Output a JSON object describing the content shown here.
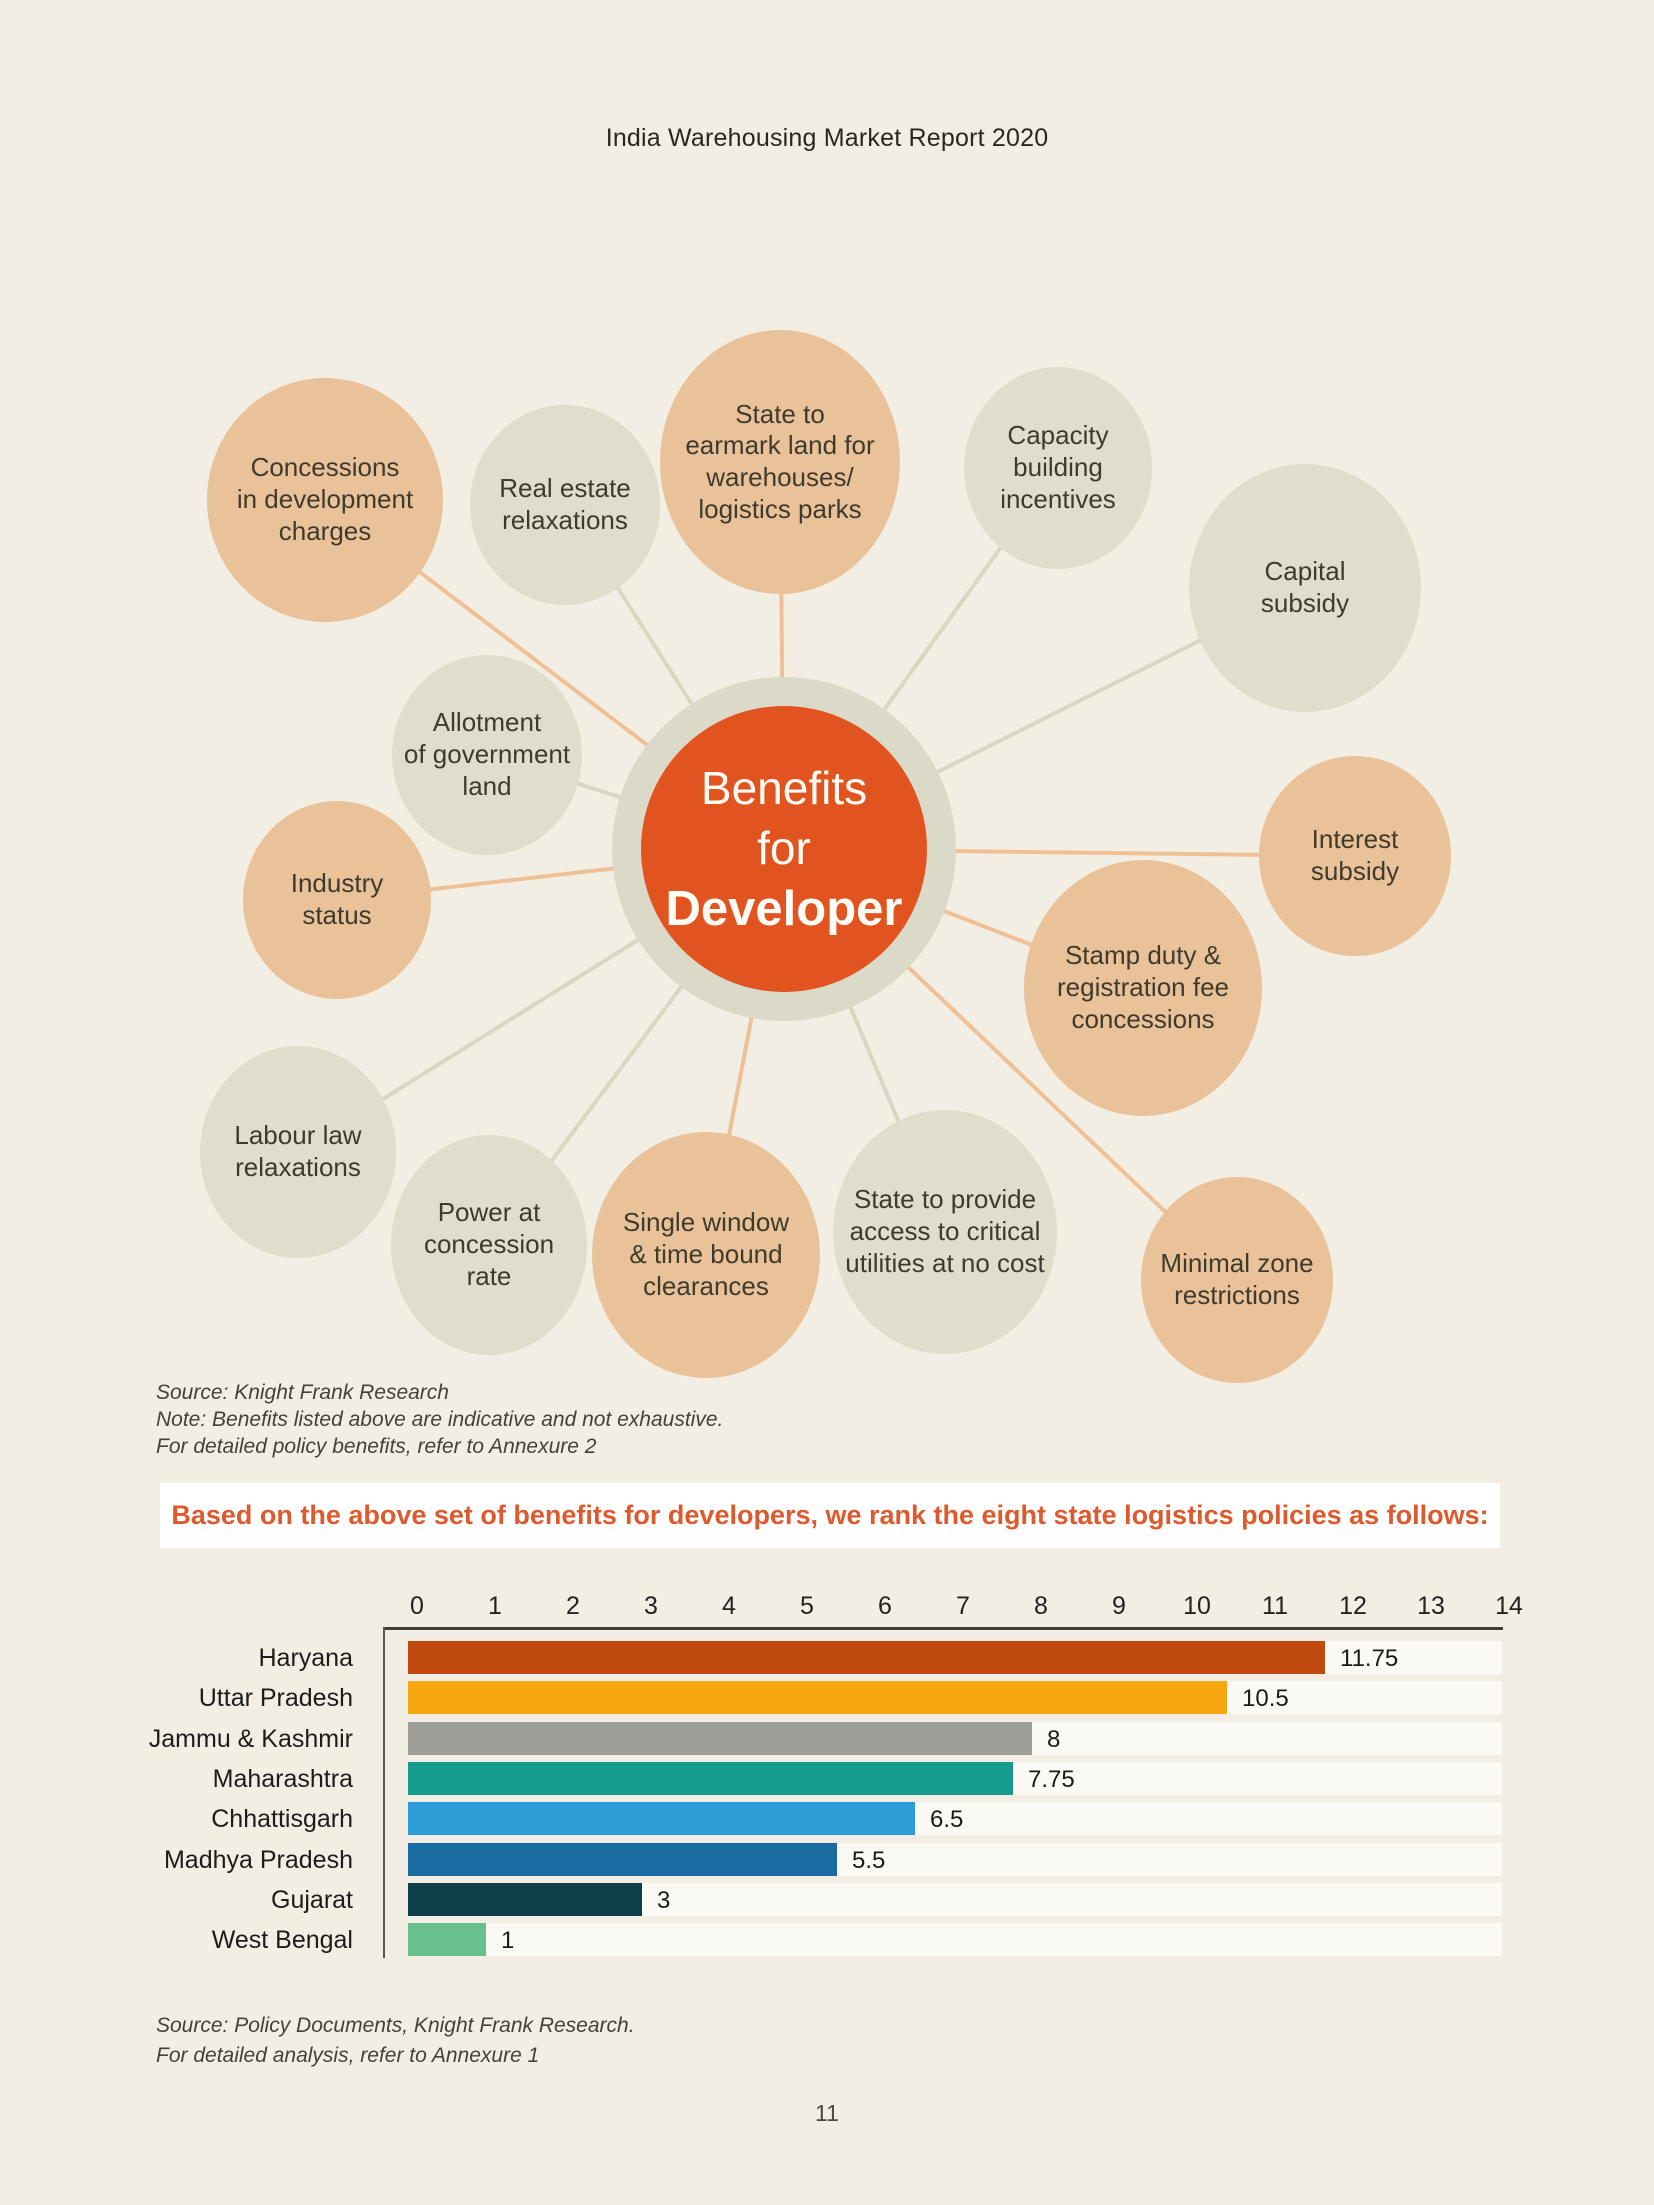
{
  "page": {
    "header": "India Warehousing Market Report 2020",
    "page_number": "11",
    "background_color": "#f2eee3"
  },
  "diagram": {
    "center": {
      "top_label": "Benefits\nfor",
      "bold_label": "Developer",
      "circle_color": "#e1531f",
      "ring_color": "#dbd9c7"
    },
    "colors": {
      "tan": "#e9c29a",
      "beige": "#dfddcb",
      "line_tan": "#efc096",
      "line_beige": "#d9d6c3",
      "text": "#3f3a2c"
    },
    "bubbles": [
      {
        "id": "concessions-development-charges",
        "label": "Concessions\nin development\ncharges",
        "color": "tan"
      },
      {
        "id": "real-estate-relaxations",
        "label": "Real estate\nrelaxations",
        "color": "beige"
      },
      {
        "id": "state-earmark-land",
        "label": "State to\nearmark land for\nwarehouses/\nlogistics parks",
        "color": "tan"
      },
      {
        "id": "capacity-building-incentives",
        "label": "Capacity\nbuilding\nincentives",
        "color": "beige"
      },
      {
        "id": "capital-subsidy",
        "label": "Capital\nsubsidy",
        "color": "beige"
      },
      {
        "id": "interest-subsidy",
        "label": "Interest\nsubsidy",
        "color": "tan"
      },
      {
        "id": "stamp-duty-concessions",
        "label": "Stamp duty &\nregistration fee\nconcessions",
        "color": "tan"
      },
      {
        "id": "minimal-zone-restrictions",
        "label": "Minimal zone\nrestrictions",
        "color": "tan"
      },
      {
        "id": "state-critical-utilities",
        "label": "State to provide\naccess to critical\nutilities at no cost",
        "color": "beige"
      },
      {
        "id": "single-window-clearances",
        "label": "Single window\n& time bound\nclearances",
        "color": "tan"
      },
      {
        "id": "power-concession-rate",
        "label": "Power at\nconcession\nrate",
        "color": "beige"
      },
      {
        "id": "labour-law-relaxations",
        "label": "Labour law\nrelaxations",
        "color": "beige"
      },
      {
        "id": "industry-status",
        "label": "Industry\nstatus",
        "color": "tan"
      },
      {
        "id": "allotment-government-land",
        "label": "Allotment\nof government\nland",
        "color": "beige"
      }
    ],
    "notes": [
      "Source: Knight Frank Research",
      "Note: Benefits listed above are indicative and not exhaustive.",
      "For detailed policy benefits, refer to Annexure 2"
    ]
  },
  "banner": {
    "text": "Based on the above set of benefits for developers, we rank the eight state logistics policies as follows:",
    "text_color": "#dc5a2e",
    "background": "#ffffff"
  },
  "chart_data": {
    "type": "bar",
    "orientation": "horizontal",
    "title": "",
    "xlabel": "",
    "ylabel": "",
    "categories": [
      "Haryana",
      "Uttar Pradesh",
      "Jammu & Kashmir",
      "Maharashtra",
      "Chhattisgarh",
      "Madhya Pradesh",
      "Gujarat",
      "West Bengal"
    ],
    "values": [
      11.75,
      10.5,
      8,
      7.75,
      6.5,
      5.5,
      3,
      1
    ],
    "value_labels": [
      "11.75",
      "10.5",
      "8",
      "7.75",
      "6.5",
      "5.5",
      "3",
      "1"
    ],
    "bar_colors": [
      "#c04a10",
      "#f7a712",
      "#9e9e99",
      "#159a8c",
      "#2d9dd8",
      "#1b6ba3",
      "#0d3f4a",
      "#67c18d"
    ],
    "xlim": [
      0,
      14
    ],
    "x_ticks": [
      "0",
      "1",
      "2",
      "3",
      "4",
      "5",
      "6",
      "7",
      "8",
      "9",
      "10",
      "11",
      "12",
      "13",
      "14"
    ],
    "axis_position": "top",
    "grid": false,
    "legend": false
  },
  "chart_notes": [
    "Source: Policy Documents, Knight Frank Research.",
    "For detailed analysis, refer to Annexure 1"
  ]
}
